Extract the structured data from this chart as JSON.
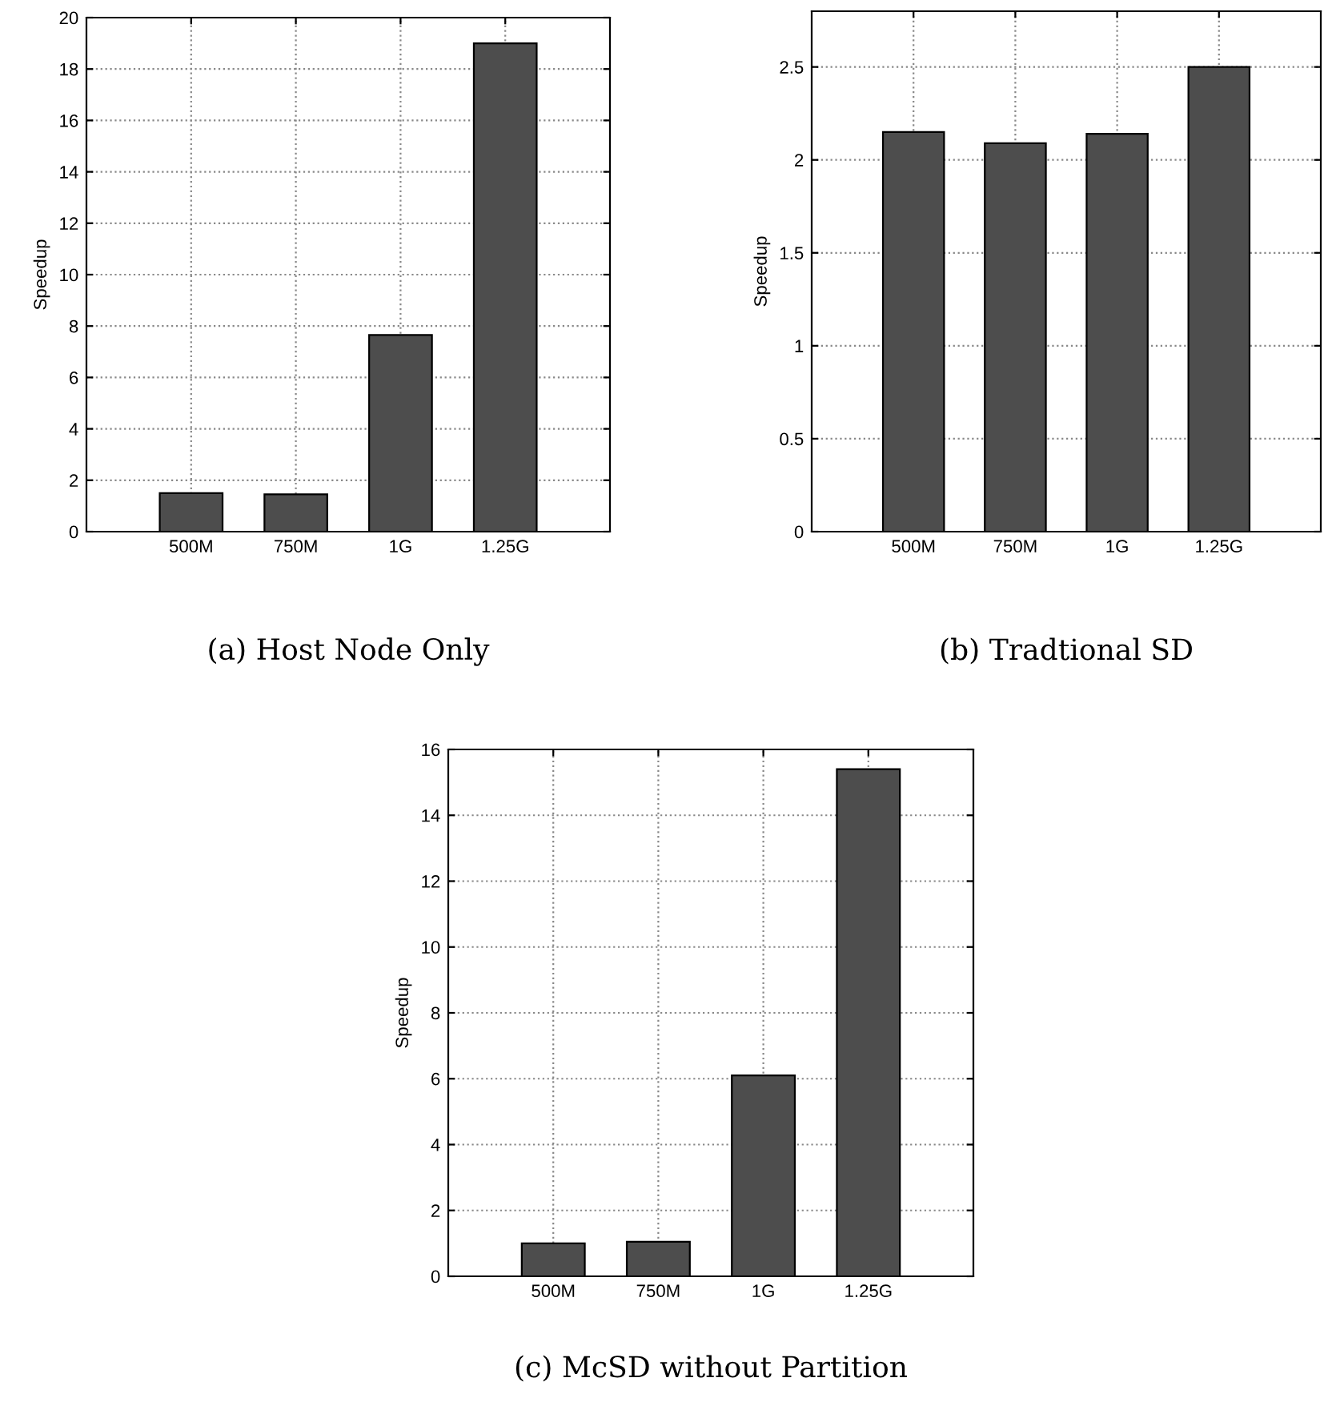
{
  "chart_data": [
    {
      "type": "bar",
      "title": "(a) Host Node Only",
      "ylabel": "Speedup",
      "categories": [
        "500M",
        "750M",
        "1G",
        "1.25G"
      ],
      "values": [
        1.5,
        1.45,
        7.65,
        19
      ],
      "color": "#4d4d4d",
      "ylim": [
        0,
        20
      ],
      "yticks": [
        0,
        2,
        4,
        6,
        8,
        10,
        12,
        14,
        16,
        18,
        20
      ],
      "grid": true
    },
    {
      "type": "bar",
      "title": "(b) Tradtional SD",
      "ylabel": "Speedup",
      "categories": [
        "500M",
        "750M",
        "1G",
        "1.25G"
      ],
      "values": [
        2.15,
        2.09,
        2.14,
        2.5
      ],
      "color": "#4d4d4d",
      "ylim": [
        0,
        2.8
      ],
      "yticks": [
        0,
        0.5,
        1,
        1.5,
        2,
        2.5
      ],
      "grid": true
    },
    {
      "type": "bar",
      "title": "(c) McSD without Partition",
      "ylabel": "Speedup",
      "categories": [
        "500M",
        "750M",
        "1G",
        "1.25G"
      ],
      "values": [
        1.0,
        1.05,
        6.1,
        15.4
      ],
      "color": "#4d4d4d",
      "ylim": [
        0,
        16
      ],
      "yticks": [
        0,
        2,
        4,
        6,
        8,
        10,
        12,
        14,
        16
      ],
      "grid": true
    }
  ]
}
